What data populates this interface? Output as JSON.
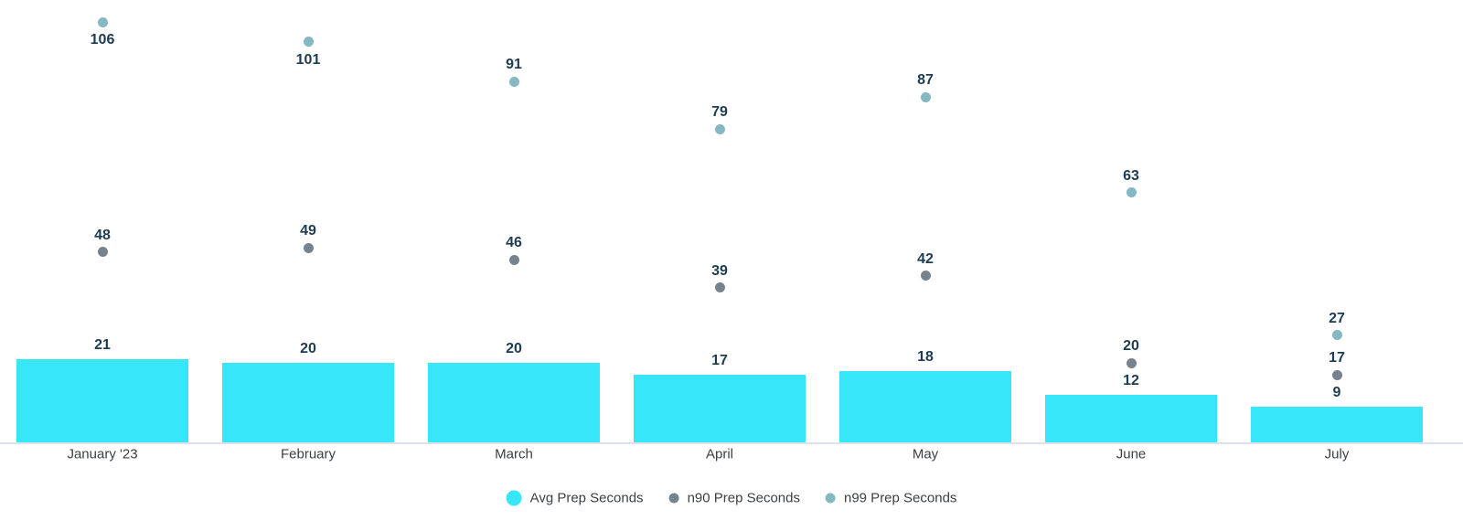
{
  "chart_data": {
    "type": "bar",
    "subtype": "combo-bar-scatter",
    "categories": [
      "January '23",
      "February",
      "March",
      "April",
      "May",
      "June",
      "July"
    ],
    "series": [
      {
        "name": "Avg Prep Seconds",
        "render_as": "bar",
        "color": "#38E6F9",
        "values": [
          21,
          20,
          20,
          17,
          18,
          12,
          9
        ]
      },
      {
        "name": "n90 Prep Seconds",
        "render_as": "scatter",
        "color": "#76838E",
        "values": [
          48,
          49,
          46,
          39,
          42,
          20,
          17
        ]
      },
      {
        "name": "n99 Prep Seconds",
        "render_as": "scatter",
        "color": "#84B8C2",
        "values": [
          106,
          101,
          91,
          79,
          87,
          63,
          27
        ]
      }
    ],
    "data_labels_visible": true,
    "n99_labels_below_point_for_categories": [
      "January '23",
      "February"
    ],
    "title": "",
    "xlabel": "",
    "ylabel": "",
    "ylim": [
      0,
      112
    ],
    "grid": false,
    "y_axis_visible": false,
    "legend_position": "bottom-center"
  },
  "colors": {
    "value_label_text": "#1D3C51",
    "axis_text": "#3C4043",
    "axis_line": "#DFE2EA",
    "background": "#FFFFFF"
  }
}
